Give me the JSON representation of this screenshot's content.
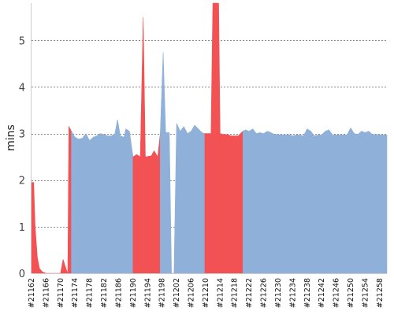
{
  "chart_data": {
    "type": "area",
    "title": "",
    "xlabel": "",
    "ylabel": "mins",
    "ylim": [
      0,
      5.8
    ],
    "yticks": [
      0,
      1,
      2,
      3,
      4,
      5
    ],
    "grid": true,
    "build_range": [
      21162,
      21260
    ],
    "tick_builds": [
      "#21162",
      "#21166",
      "#21170",
      "#21174",
      "#21178",
      "#21182",
      "#21186",
      "#21190",
      "#21194",
      "#21198",
      "#21202",
      "#21206",
      "#21210",
      "#21214",
      "#21218",
      "#21222",
      "#21226",
      "#21230",
      "#21234",
      "#21238",
      "#21242",
      "#21246",
      "#21250",
      "#21254",
      "#21258"
    ],
    "colors": {
      "pass": "#8fb0d9",
      "fail": "#f25254"
    },
    "series": [
      {
        "status": "fail",
        "points": [
          [
            21162,
            1.95
          ],
          [
            21162.6,
            1.95
          ],
          [
            21163,
            1.0
          ],
          [
            21163.6,
            0.35
          ],
          [
            21164.2,
            0.1
          ],
          [
            21165,
            0.03
          ],
          [
            21166,
            0.0
          ],
          [
            21168,
            0.0
          ],
          [
            21170,
            0.0
          ],
          [
            21170.7,
            0.3
          ],
          [
            21171.5,
            0.1
          ],
          [
            21172,
            0.0
          ],
          [
            21172.3,
            3.15
          ],
          [
            21173,
            3.05
          ]
        ]
      },
      {
        "status": "pass",
        "points": [
          [
            21173,
            3.05
          ],
          [
            21174,
            2.92
          ],
          [
            21175,
            2.88
          ],
          [
            21176,
            2.9
          ],
          [
            21177,
            3.0
          ],
          [
            21178,
            2.85
          ],
          [
            21179,
            2.92
          ],
          [
            21180,
            2.95
          ],
          [
            21181,
            3.0
          ],
          [
            21182,
            2.98
          ],
          [
            21183,
            2.95
          ],
          [
            21184,
            2.95
          ],
          [
            21185,
            3.0
          ],
          [
            21185.7,
            3.3
          ],
          [
            21186.5,
            2.95
          ],
          [
            21187.5,
            2.92
          ],
          [
            21188,
            3.1
          ],
          [
            21189,
            3.05
          ],
          [
            21190,
            2.5
          ]
        ]
      },
      {
        "status": "fail",
        "points": [
          [
            21190,
            2.5
          ],
          [
            21191,
            2.55
          ],
          [
            21192,
            2.5
          ],
          [
            21192.8,
            5.5
          ],
          [
            21193.4,
            2.5
          ],
          [
            21195,
            2.52
          ],
          [
            21195.8,
            2.63
          ],
          [
            21196.8,
            2.5
          ],
          [
            21197.5,
            3.0
          ]
        ]
      },
      {
        "status": "pass",
        "points": [
          [
            21197.5,
            3.0
          ],
          [
            21198.3,
            4.75
          ],
          [
            21199,
            3.02
          ],
          [
            21200,
            3.02
          ],
          [
            21200.6,
            0.0
          ]
        ]
      },
      {
        "status": "fail",
        "points": [
          [
            21200.6,
            0.0
          ],
          [
            21201.3,
            0.0
          ]
        ]
      },
      {
        "status": "pass",
        "points": [
          [
            21201.3,
            0.0
          ],
          [
            21202,
            3.22
          ],
          [
            21203,
            3.05
          ],
          [
            21204,
            3.15
          ],
          [
            21205,
            3.0
          ],
          [
            21206,
            3.05
          ],
          [
            21207,
            3.18
          ],
          [
            21208,
            3.1
          ],
          [
            21209,
            3.02
          ],
          [
            21209.8,
            3.0
          ]
        ]
      },
      {
        "status": "fail",
        "points": [
          [
            21209.8,
            3.0
          ],
          [
            21211.5,
            3.0
          ],
          [
            21212,
            5.8
          ],
          [
            21213.6,
            5.8
          ],
          [
            21214,
            3.0
          ],
          [
            21215,
            2.98
          ],
          [
            21216,
            2.98
          ],
          [
            21217,
            2.95
          ],
          [
            21218,
            2.95
          ],
          [
            21219,
            2.95
          ],
          [
            21220.3,
            3.05
          ]
        ]
      },
      {
        "status": "pass",
        "points": [
          [
            21220.3,
            3.05
          ],
          [
            21221,
            3.08
          ],
          [
            21222,
            3.05
          ],
          [
            21223,
            3.1
          ],
          [
            21224,
            3.0
          ],
          [
            21225,
            3.02
          ],
          [
            21226,
            3.0
          ],
          [
            21227,
            3.05
          ],
          [
            21228,
            3.02
          ],
          [
            21229,
            2.98
          ],
          [
            21230,
            2.98
          ],
          [
            21231,
            2.97
          ],
          [
            21232,
            2.97
          ],
          [
            21233,
            2.98
          ],
          [
            21234,
            2.95
          ],
          [
            21235,
            2.97
          ],
          [
            21236,
            2.97
          ],
          [
            21237,
            2.95
          ],
          [
            21238,
            3.1
          ],
          [
            21239,
            3.05
          ],
          [
            21240,
            2.95
          ],
          [
            21241,
            2.97
          ],
          [
            21242,
            2.97
          ],
          [
            21243,
            3.05
          ],
          [
            21244,
            3.08
          ],
          [
            21245,
            2.97
          ],
          [
            21246,
            2.97
          ],
          [
            21247,
            2.97
          ],
          [
            21248,
            2.97
          ],
          [
            21249,
            2.97
          ],
          [
            21250,
            3.12
          ],
          [
            21251,
            3.0
          ],
          [
            21252,
            2.98
          ],
          [
            21253,
            3.05
          ],
          [
            21254,
            3.02
          ],
          [
            21255,
            3.05
          ],
          [
            21256,
            2.98
          ],
          [
            21257,
            2.98
          ],
          [
            21258,
            2.97
          ],
          [
            21259,
            2.97
          ],
          [
            21260,
            2.97
          ]
        ]
      }
    ]
  }
}
